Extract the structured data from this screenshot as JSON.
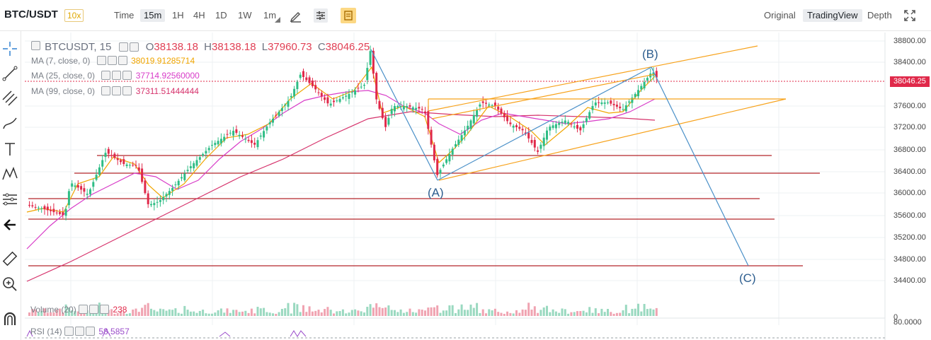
{
  "header": {
    "pair": "BTC/USDT",
    "leverage": "10x",
    "timeframes": [
      "Time",
      "15m",
      "1H",
      "4H",
      "1D",
      "1W",
      "1m"
    ],
    "active_timeframe": "15m",
    "views": [
      "Original",
      "TradingView",
      "Depth"
    ],
    "active_view": "TradingView"
  },
  "legend": {
    "symbol": "BTCUSDT, 15",
    "open_key": "O",
    "open": "38138.18",
    "high_key": "H",
    "high": "38138.18",
    "low_key": "L",
    "low": "37960.73",
    "close_key": "C",
    "close": "38046.25",
    "ma7_label": "MA (7, close, 0)",
    "ma7_value": "38019.91285714",
    "ma25_label": "MA (25, close, 0)",
    "ma25_value": "37714.92560000",
    "ma99_label": "MA (99, close, 0)",
    "ma99_value": "37311.51444444",
    "volume_label": "Volume (20)",
    "volume_value": "238",
    "rsi_label": "RSI (14)",
    "rsi_value": "58.5857"
  },
  "price_axis": {
    "ticks": [
      "38800.00",
      "38400.00",
      "38046.25",
      "37600.00",
      "37200.00",
      "36800.00",
      "36400.00",
      "36000.00",
      "35600.00",
      "35200.00",
      "34800.00",
      "34400.00"
    ],
    "current_price": "38046.25",
    "volume_tick": "0",
    "rsi_tick": "80.0000"
  },
  "waves": {
    "a": "(A)",
    "b": "(B)",
    "c": "(C)"
  },
  "colors": {
    "up": "#2ebd85",
    "down": "#e0294a",
    "ma7": "#f0a500",
    "ma25": "#d83cc8",
    "ma99": "#d6336c",
    "channel": "#f7a21b",
    "wave": "#4a90c8",
    "hline": "#b3262b"
  },
  "icons": [
    "crosshair-icon",
    "trendline-icon",
    "fib-icon",
    "brush-icon",
    "text-icon",
    "pattern-icon",
    "measure-icon",
    "back-arrow-icon",
    "ruler-icon",
    "zoom-icon",
    "magnet-icon"
  ]
}
